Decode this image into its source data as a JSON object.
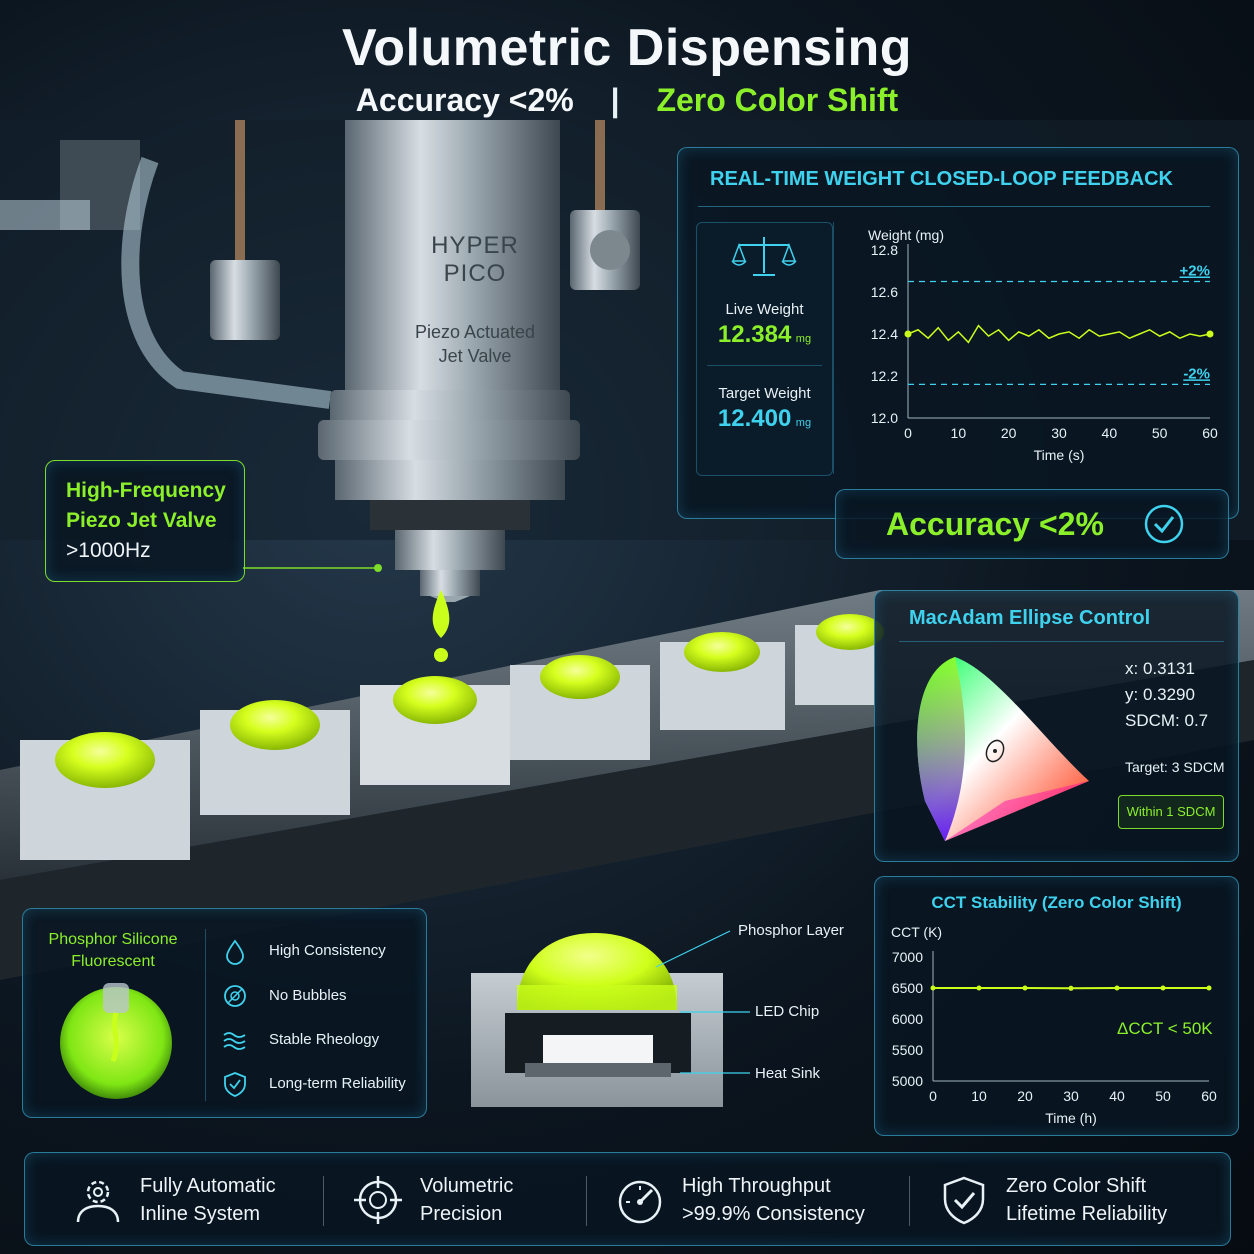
{
  "header": {
    "title": "Volumetric Dispensing",
    "subtitle_left": "Accuracy <2%",
    "separator": "|",
    "subtitle_right": "Zero Color Shift"
  },
  "valve": {
    "brand_line1": "HYPER",
    "brand_line2": "PICO",
    "model_line1": "Piezo Actuated",
    "model_line2": "Jet Valve"
  },
  "callout_valve": {
    "line1": "High-Frequency",
    "line2": "Piezo Jet Valve",
    "line3": ">1000Hz"
  },
  "weight_panel": {
    "title": "REAL-TIME WEIGHT CLOSED-LOOP FEEDBACK",
    "live_label": "Live Weight",
    "live_value": "12.384",
    "live_unit": "mg",
    "target_label": "Target Weight",
    "target_value": "12.400",
    "target_unit": "mg",
    "upper_tol_label": "+2%",
    "lower_tol_label": "-2%",
    "accuracy_text": "Accuracy <2%"
  },
  "macadam_panel": {
    "title": "MacAdam Ellipse Control",
    "x_text": "x: 0.3131",
    "y_text": "y: 0.3290",
    "sdcm_text": "SDCM: 0.7",
    "target_text": "Target: 3 SDCM",
    "badge_text": "Within 1 SDCM"
  },
  "cct_panel": {
    "title": "CCT Stability (Zero Color Shift)",
    "delta_text": "ΔCCT < 50K"
  },
  "phosphor_panel": {
    "title_line1": "Phosphor Silicone",
    "title_line2": "Fluorescent",
    "features": [
      {
        "icon": "droplet-icon",
        "label": "High Consistency"
      },
      {
        "icon": "no-bubbles-icon",
        "label": "No Bubbles"
      },
      {
        "icon": "waves-icon",
        "label": "Stable Rheology"
      },
      {
        "icon": "shield-icon",
        "label": "Long-term Reliability"
      }
    ]
  },
  "led_diagram": {
    "phosphor_label": "Phosphor Layer",
    "chip_label": "LED Chip",
    "sink_label": "Heat Sink"
  },
  "bottom_bar": [
    {
      "icon": "gear-person-icon",
      "line1": "Fully Automatic",
      "line2": "Inline System"
    },
    {
      "icon": "crosshair-icon",
      "line1": "Volumetric",
      "line2": "Precision"
    },
    {
      "icon": "speedometer-icon",
      "line1": "High Throughput",
      "line2": ">99.9% Consistency"
    },
    {
      "icon": "shield-check-icon",
      "line1": "Zero Color Shift",
      "line2": "Lifetime Reliability"
    }
  ],
  "colors": {
    "accent_cyan": "#3fd2ee",
    "accent_green": "#8bf02a",
    "phosphor_lime": "#c9ff1a",
    "panel_border": "#3cb4dc"
  },
  "chart_data": [
    {
      "type": "line",
      "xlabel": "Time (s)",
      "ylabel": "Weight (mg)",
      "xlim": [
        0,
        60
      ],
      "ylim": [
        12.0,
        12.8
      ],
      "x_ticks": [
        "0",
        "10",
        "20",
        "30",
        "40",
        "50",
        "60"
      ],
      "y_ticks": [
        "12.0",
        "12.2",
        "12.4",
        "12.6",
        "12.8"
      ],
      "reference_lines": [
        {
          "label": "+2%",
          "y": 12.65
        },
        {
          "label": "-2%",
          "y": 12.16
        }
      ],
      "series": [
        {
          "x": [
            0,
            2,
            4,
            6,
            8,
            10,
            12,
            14,
            16,
            18,
            20,
            22,
            24,
            26,
            28,
            30,
            32,
            34,
            36,
            38,
            40,
            42,
            44,
            46,
            48,
            50,
            52,
            54,
            56,
            58,
            60
          ],
          "values": [
            12.4,
            12.42,
            12.38,
            12.43,
            12.37,
            12.41,
            12.36,
            12.44,
            12.39,
            12.42,
            12.37,
            12.41,
            12.39,
            12.42,
            12.38,
            12.4,
            12.41,
            12.38,
            12.42,
            12.39,
            12.4,
            12.41,
            12.38,
            12.4,
            12.42,
            12.39,
            12.41,
            12.38,
            12.4,
            12.39,
            12.4
          ]
        }
      ],
      "grid": false
    },
    {
      "type": "line",
      "xlabel": "Time (h)",
      "ylabel": "CCT (K)",
      "xlim": [
        0,
        60
      ],
      "ylim": [
        5000,
        7000
      ],
      "x_ticks": [
        "0",
        "10",
        "20",
        "30",
        "40",
        "50",
        "60"
      ],
      "y_ticks": [
        "5000",
        "5500",
        "6000",
        "6500",
        "7000"
      ],
      "series": [
        {
          "x": [
            0,
            10,
            20,
            30,
            40,
            50,
            60
          ],
          "values": [
            6500,
            6500,
            6500,
            6495,
            6500,
            6500,
            6500
          ]
        }
      ],
      "grid": false
    }
  ]
}
